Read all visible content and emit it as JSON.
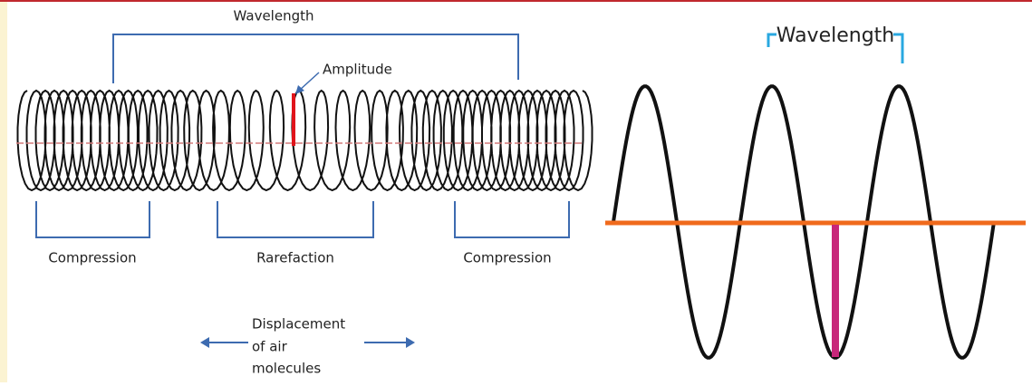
{
  "left_diagram": {
    "wavelength_label": "Wavelength",
    "amplitude_label": "Amplitude",
    "regions": [
      "Compression",
      "Rarefaction",
      "Compression"
    ],
    "displacement_label": [
      "Displacement",
      "of air",
      "molecules"
    ]
  },
  "right_diagram": {
    "wavelength_label": "Wavelength"
  }
}
